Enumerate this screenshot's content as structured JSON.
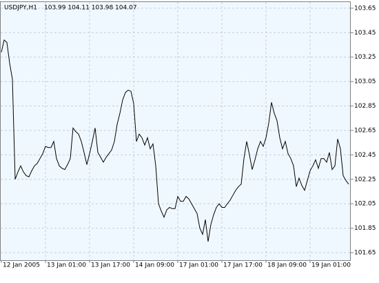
{
  "chart_data": {
    "type": "line",
    "title": "USDJPY,H1",
    "subtitle": "103.99 104.11 103.98 104.07",
    "categories": [
      "12 Jan 2005",
      null,
      null,
      null,
      null,
      null,
      null,
      null,
      null,
      null,
      null,
      null,
      null,
      null,
      null,
      null,
      "13 Jan 01:00",
      null,
      null,
      null,
      null,
      null,
      null,
      null,
      null,
      null,
      null,
      null,
      null,
      null,
      null,
      null,
      "13 Jan 17:00",
      null,
      null,
      null,
      null,
      null,
      null,
      null,
      null,
      null,
      null,
      null,
      null,
      null,
      null,
      null,
      "14 Jan 09:00",
      null,
      null,
      null,
      null,
      null,
      null,
      null,
      null,
      null,
      null,
      null,
      null,
      null,
      null,
      null,
      "17 Jan 01:00",
      null,
      null,
      null,
      null,
      null,
      null,
      null,
      null,
      null,
      null,
      null,
      null,
      null,
      null,
      null,
      "17 Jan 17:00",
      null,
      null,
      null,
      null,
      null,
      null,
      null,
      null,
      null,
      null,
      null,
      null,
      null,
      null,
      null,
      "18 Jan 09:00",
      null,
      null,
      null,
      null,
      null,
      null,
      null,
      null,
      null,
      null,
      null,
      null,
      null,
      null,
      null,
      "19 Jan 01:00",
      null,
      null,
      null,
      null,
      null,
      null,
      null,
      null,
      null,
      null,
      null,
      null,
      null,
      null
    ],
    "values": [
      103.29,
      103.39,
      103.37,
      103.2,
      103.07,
      102.25,
      102.31,
      102.36,
      102.31,
      102.28,
      102.27,
      102.32,
      102.36,
      102.38,
      102.42,
      102.46,
      102.52,
      102.51,
      102.51,
      102.56,
      102.42,
      102.36,
      102.34,
      102.33,
      102.37,
      102.42,
      102.67,
      102.64,
      102.62,
      102.56,
      102.47,
      102.37,
      102.46,
      102.56,
      102.67,
      102.47,
      102.43,
      102.39,
      102.43,
      102.46,
      102.49,
      102.56,
      102.7,
      102.79,
      102.9,
      102.96,
      102.98,
      102.97,
      102.87,
      102.56,
      102.62,
      102.59,
      102.53,
      102.59,
      102.5,
      102.54,
      102.36,
      102.05,
      101.99,
      101.94,
      102.0,
      102.02,
      102.01,
      102.01,
      102.11,
      102.07,
      102.07,
      102.11,
      102.09,
      102.05,
      102.01,
      101.97,
      101.85,
      101.8,
      101.92,
      101.74,
      101.88,
      101.96,
      102.02,
      102.05,
      102.02,
      102.02,
      102.05,
      102.08,
      102.12,
      102.16,
      102.19,
      102.21,
      102.42,
      102.56,
      102.45,
      102.33,
      102.41,
      102.5,
      102.56,
      102.52,
      102.59,
      102.71,
      102.88,
      102.79,
      102.73,
      102.59,
      102.5,
      102.56,
      102.46,
      102.42,
      102.36,
      102.19,
      102.26,
      102.2,
      102.16,
      102.24,
      102.32,
      102.36,
      102.41,
      102.34,
      102.42,
      102.42,
      102.39,
      102.47,
      102.33,
      102.36,
      102.58,
      102.5,
      102.28,
      102.24,
      102.21
    ],
    "color": "#000000",
    "ylim": [
      101.588,
      103.706
    ],
    "yticks": [
      101.65,
      101.85,
      102.05,
      102.25,
      102.45,
      102.65,
      102.85,
      103.05,
      103.25,
      103.45,
      103.65
    ],
    "grid": true
  }
}
